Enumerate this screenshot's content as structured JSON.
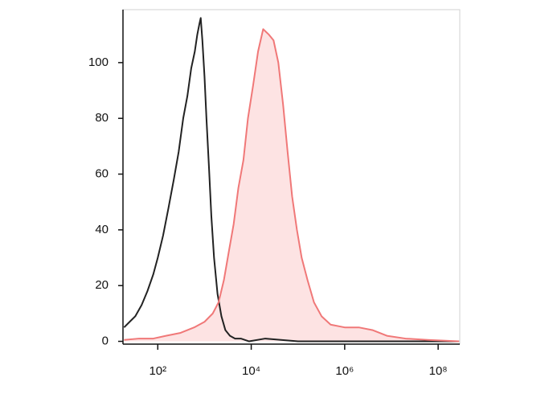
{
  "chart_data": {
    "type": "histogram-overlay",
    "x_scale": "log",
    "xlim": [
      18,
      290000000
    ],
    "xticks": [
      {
        "value": 100,
        "label": "10²"
      },
      {
        "value": 10000,
        "label": "10⁴"
      },
      {
        "value": 1000000,
        "label": "10⁶"
      },
      {
        "value": 100000000,
        "label": "10⁸"
      }
    ],
    "ylim": [
      -1,
      119
    ],
    "yticks": [
      0,
      20,
      40,
      60,
      80,
      100
    ],
    "series": [
      {
        "color": "#222222",
        "fill": false,
        "x": [
          19,
          25,
          33,
          45,
          60,
          80,
          100,
          130,
          170,
          220,
          280,
          350,
          430,
          520,
          620,
          700,
          780,
          830,
          900,
          1000,
          1100,
          1250,
          1400,
          1600,
          1900,
          2300,
          2800,
          3500,
          4500,
          6000,
          9000,
          20000,
          100000,
          1000000,
          10000000,
          100000000,
          280000000
        ],
        "values": [
          5,
          7,
          9,
          13,
          18,
          24,
          30,
          38,
          48,
          58,
          68,
          80,
          88,
          98,
          104,
          110,
          114,
          116,
          108,
          95,
          80,
          62,
          45,
          30,
          17,
          9,
          4,
          2,
          1,
          1,
          0,
          1,
          0,
          0,
          0,
          0,
          0
        ]
      },
      {
        "color": "#f07878",
        "fill": "#fde3e3",
        "x": [
          19,
          40,
          80,
          150,
          300,
          600,
          1000,
          1500,
          2000,
          2600,
          3300,
          4200,
          5300,
          6800,
          8500,
          11000,
          14000,
          18000,
          24000,
          30000,
          38000,
          48000,
          60000,
          75000,
          95000,
          120000,
          160000,
          220000,
          320000,
          500000,
          1000000,
          2000000,
          4000000,
          8000000,
          20000000,
          60000000,
          280000000
        ],
        "values": [
          0.5,
          1,
          1,
          2,
          3,
          5,
          7,
          10,
          14,
          22,
          32,
          42,
          55,
          65,
          80,
          92,
          104,
          112,
          110,
          108,
          100,
          85,
          68,
          52,
          40,
          30,
          22,
          14,
          9,
          6,
          5,
          5,
          4,
          2,
          1,
          0.5,
          0
        ]
      }
    ]
  }
}
